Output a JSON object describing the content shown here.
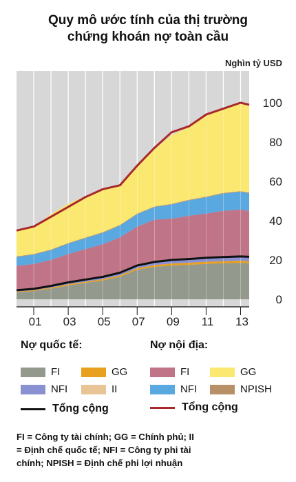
{
  "title_lines": [
    "Quy mô ước tính của thị trường",
    "chứng khoán nợ toàn cầu"
  ],
  "unit": "Nghìn tỷ USD",
  "chart_data": {
    "type": "area",
    "stacked": true,
    "x_start": 2000,
    "x_end": 2013.5,
    "xticks": [
      2001,
      2003,
      2005,
      2007,
      2009,
      2011,
      2013
    ],
    "xtick_labels": [
      "01",
      "03",
      "05",
      "07",
      "09",
      "11",
      "13"
    ],
    "ylim": [
      0,
      100
    ],
    "yticks": [
      0,
      20,
      40,
      60,
      80,
      100
    ],
    "grid": true,
    "x": [
      2000,
      2001,
      2002,
      2003,
      2004,
      2005,
      2006,
      2007,
      2008,
      2009,
      2010,
      2011,
      2012,
      2013,
      2013.5
    ],
    "series": [
      {
        "key": "intl_fi",
        "group": "international",
        "color": "#94998d",
        "values": [
          3.5,
          4.2,
          5.5,
          7,
          8.3,
          9.5,
          11.5,
          15,
          16.5,
          17.2,
          17.5,
          18,
          18.3,
          18.5,
          18.3
        ]
      },
      {
        "key": "intl_gg",
        "group": "international",
        "color": "#e8a020",
        "values": [
          0.4,
          0.4,
          0.5,
          0.6,
          0.6,
          0.7,
          0.7,
          0.8,
          0.9,
          1,
          1.1,
          1.1,
          1.1,
          1.1,
          1.1
        ]
      },
      {
        "key": "intl_nfi",
        "group": "international",
        "color": "#8a91d2",
        "values": [
          0.5,
          0.5,
          0.6,
          0.7,
          0.8,
          0.9,
          1.0,
          1.1,
          1.2,
          1.4,
          1.5,
          1.6,
          1.7,
          1.8,
          1.8
        ]
      },
      {
        "key": "intl_ii",
        "group": "international",
        "color": "#e8c496",
        "values": [
          0.2,
          0.2,
          0.2,
          0.3,
          0.3,
          0.3,
          0.3,
          0.3,
          0.4,
          0.4,
          0.4,
          0.4,
          0.4,
          0.4,
          0.4
        ]
      },
      {
        "key": "dom_fi",
        "group": "domestic",
        "color": "#c07487",
        "values": [
          12.4,
          12.7,
          13.2,
          14.4,
          15.5,
          16.6,
          18,
          19.8,
          21.5,
          21,
          22,
          22.5,
          23.5,
          23.8,
          23.4
        ]
      },
      {
        "key": "dom_nfi",
        "group": "domestic",
        "color": "#5aa8e0",
        "values": [
          4.5,
          4.7,
          5.0,
          5.3,
          5.6,
          5.8,
          6.0,
          6.3,
          6.4,
          7.2,
          7.8,
          8.3,
          8.8,
          9.1,
          9.0
        ]
      },
      {
        "key": "dom_npish",
        "group": "domestic",
        "color": "#b89068",
        "values": [
          0.3,
          0.3,
          0.3,
          0.3,
          0.3,
          0.3,
          0.3,
          0.3,
          0.3,
          0.3,
          0.3,
          0.3,
          0.3,
          0.3,
          0.3
        ]
      },
      {
        "key": "dom_gg",
        "group": "domestic",
        "color": "#fae870",
        "values": [
          13,
          14,
          18,
          20,
          21,
          22.5,
          20,
          24,
          29,
          35,
          37,
          41,
          42.8,
          44.5,
          44.4
        ]
      }
    ],
    "totals": [
      {
        "key": "intl_total",
        "color": "#111111",
        "values": [
          4.6,
          5.3,
          6.8,
          8.6,
          10,
          11.4,
          13.5,
          17.2,
          19,
          20,
          20.5,
          21.1,
          21.5,
          21.8,
          21.6
        ]
      },
      {
        "key": "dom_total",
        "color": "#a8282c",
        "values": [
          35,
          37,
          42,
          47,
          52,
          56,
          58,
          68,
          77,
          85,
          88,
          94,
          97,
          100,
          99
        ]
      }
    ]
  },
  "legend": {
    "international_heading": "Nợ quốc tế:",
    "domestic_heading": "Nợ nội địa:",
    "intl_items": [
      {
        "label": "FI",
        "color": "#94998d"
      },
      {
        "label": "GG",
        "color": "#e8a020"
      },
      {
        "label": "NFI",
        "color": "#8a91d2"
      },
      {
        "label": "II",
        "color": "#e8c496"
      }
    ],
    "dom_items": [
      {
        "label": "FI",
        "color": "#c07487"
      },
      {
        "label": "GG",
        "color": "#fae870"
      },
      {
        "label": "NFI",
        "color": "#5aa8e0"
      },
      {
        "label": "NPISH",
        "color": "#b89068"
      }
    ],
    "intl_total_label": "Tổng cộng",
    "dom_total_label": "Tổng cộng"
  },
  "footnote_lines": [
    "FI = Công ty tài chính; GG = Chính phủ; II",
    "= Định chế quốc tế; NFI = Công ty phi tài",
    "chính; NPISH = Định chế phi lợi nhuận"
  ]
}
